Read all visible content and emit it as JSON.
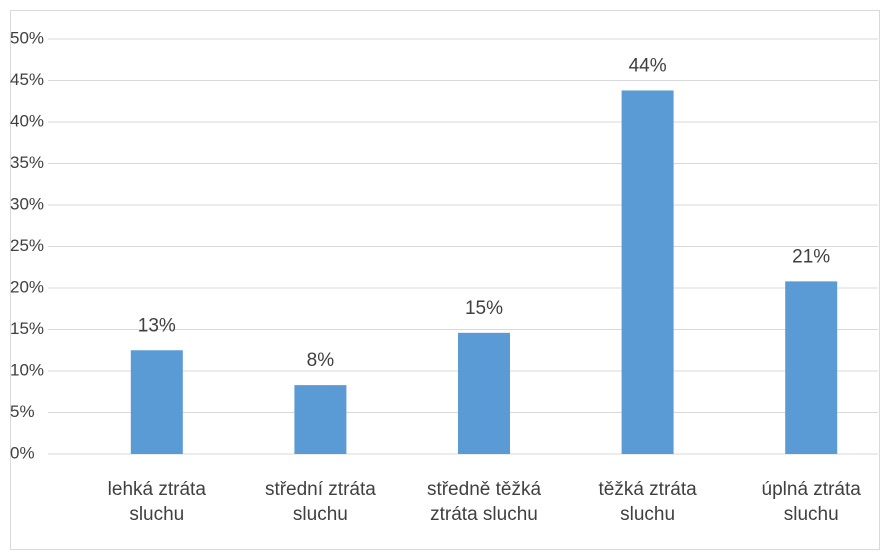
{
  "chart_data": {
    "type": "bar",
    "categories": [
      "lehká ztráta sluchu",
      "střední ztráta sluchu",
      "středně těžká ztráta sluchu",
      "těžká ztráta sluchu",
      "úplná ztráta sluchu"
    ],
    "values": [
      12.5,
      8.3,
      14.6,
      43.8,
      20.8
    ],
    "value_labels": [
      "13%",
      "8%",
      "15%",
      "44%",
      "21%"
    ],
    "color": "#5b9bd5",
    "ylim": [
      0,
      50
    ],
    "yticks": [
      {
        "value": 0,
        "label": "0%"
      },
      {
        "value": 5,
        "label": "5%"
      },
      {
        "value": 10,
        "label": "10%"
      },
      {
        "value": 15,
        "label": "15%"
      },
      {
        "value": 20,
        "label": "20%"
      },
      {
        "value": 25,
        "label": "25%"
      },
      {
        "value": 30,
        "label": "30%"
      },
      {
        "value": 35,
        "label": "35%"
      },
      {
        "value": 40,
        "label": "40%"
      },
      {
        "value": 45,
        "label": "45%"
      },
      {
        "value": 50,
        "label": "50%"
      }
    ],
    "grid": true
  }
}
